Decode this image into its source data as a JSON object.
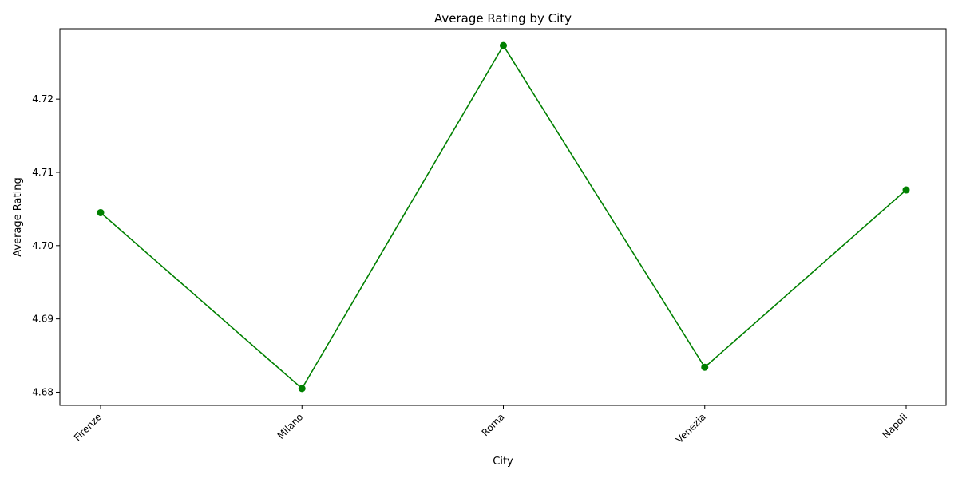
{
  "chart_data": {
    "type": "line",
    "title": "Average Rating by City",
    "xlabel": "City",
    "ylabel": "Average Rating",
    "categories": [
      "Firenze",
      "Milano",
      "Roma",
      "Venezia",
      "Napoli"
    ],
    "series": [
      {
        "values": [
          4.7045,
          4.6805,
          4.7273,
          4.6834,
          4.7076
        ],
        "color": "#008000",
        "marker": "circle"
      }
    ],
    "ylim": [
      4.6782,
      4.7296
    ],
    "yticks": [
      "4.68",
      "4.69",
      "4.70",
      "4.71",
      "4.72"
    ],
    "grid": false,
    "legend": "none"
  }
}
